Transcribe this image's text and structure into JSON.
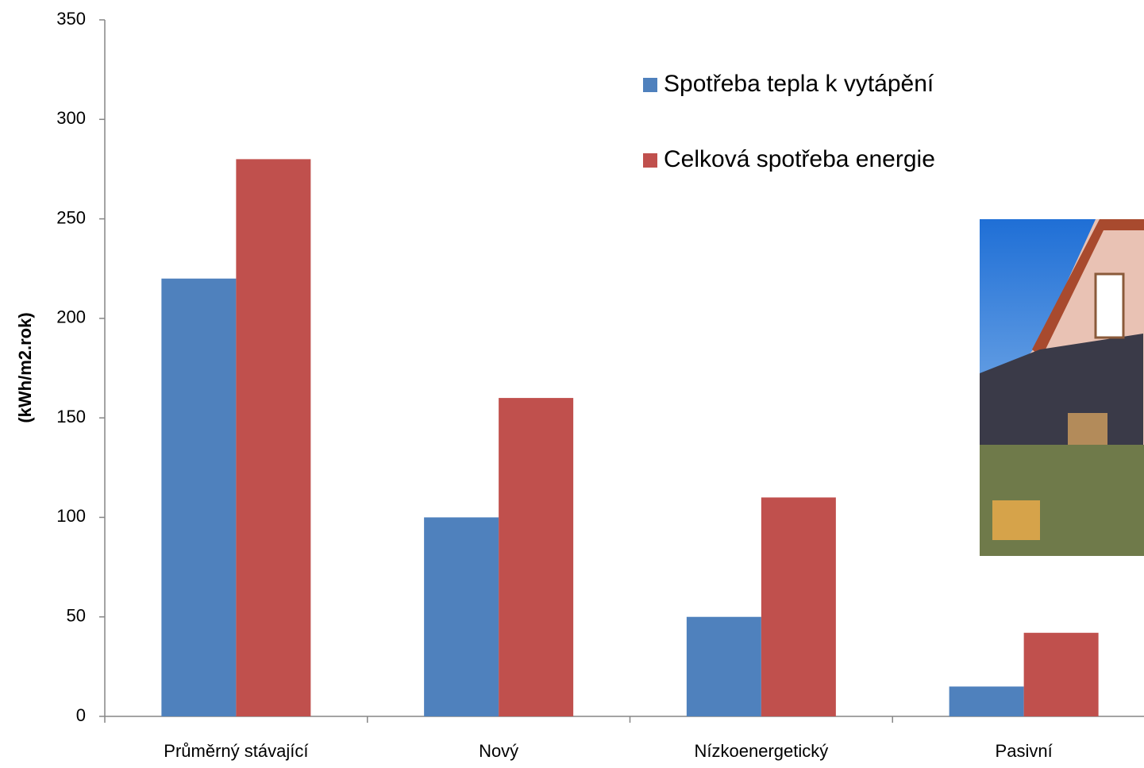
{
  "chart_data": {
    "type": "bar",
    "y_label": "(kWh/m2.rok)",
    "categories": [
      "Průměrný stávající",
      "Nový",
      "Nízkoenergetický",
      "Pasivní"
    ],
    "series": [
      {
        "name": "Spotřeba tepla k vytápění",
        "color": "#4f81bd",
        "values": [
          220,
          100,
          50,
          15
        ]
      },
      {
        "name": "Celková spotřeba energie",
        "color": "#c0504d",
        "values": [
          280,
          160,
          110,
          42
        ]
      }
    ],
    "ylim": [
      0,
      350
    ],
    "yticks": [
      0,
      50,
      100,
      150,
      200,
      250,
      300,
      350
    ],
    "grid": false
  }
}
